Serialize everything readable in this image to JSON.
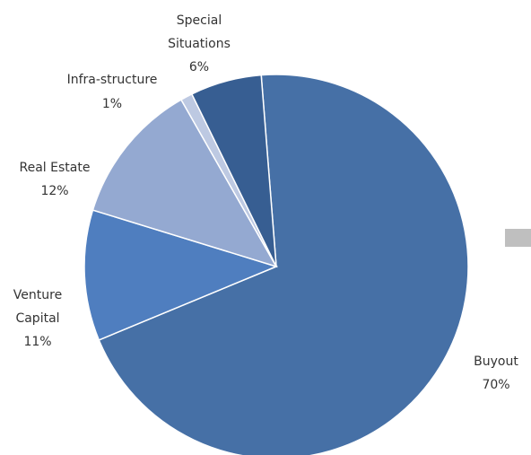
{
  "chart_data": {
    "type": "pie",
    "title": "",
    "slices": [
      {
        "label": "Buyout",
        "value": 70,
        "value_label": "70%",
        "color": "#4670A6"
      },
      {
        "label": "Venture Capital",
        "value": 11,
        "value_label": "11%",
        "color": "#4F7EBF"
      },
      {
        "label": "Real Estate",
        "value": 12,
        "value_label": "12%",
        "color": "#94A9D1"
      },
      {
        "label": "Infra-structure",
        "value": 1,
        "value_label": "1%",
        "color": "#BDC9E2"
      },
      {
        "label": "Special Situations",
        "value": 6,
        "value_label": "6%",
        "color": "#375E92"
      }
    ],
    "legend": "none",
    "legend_swatch_color": "#BFBFBF"
  }
}
